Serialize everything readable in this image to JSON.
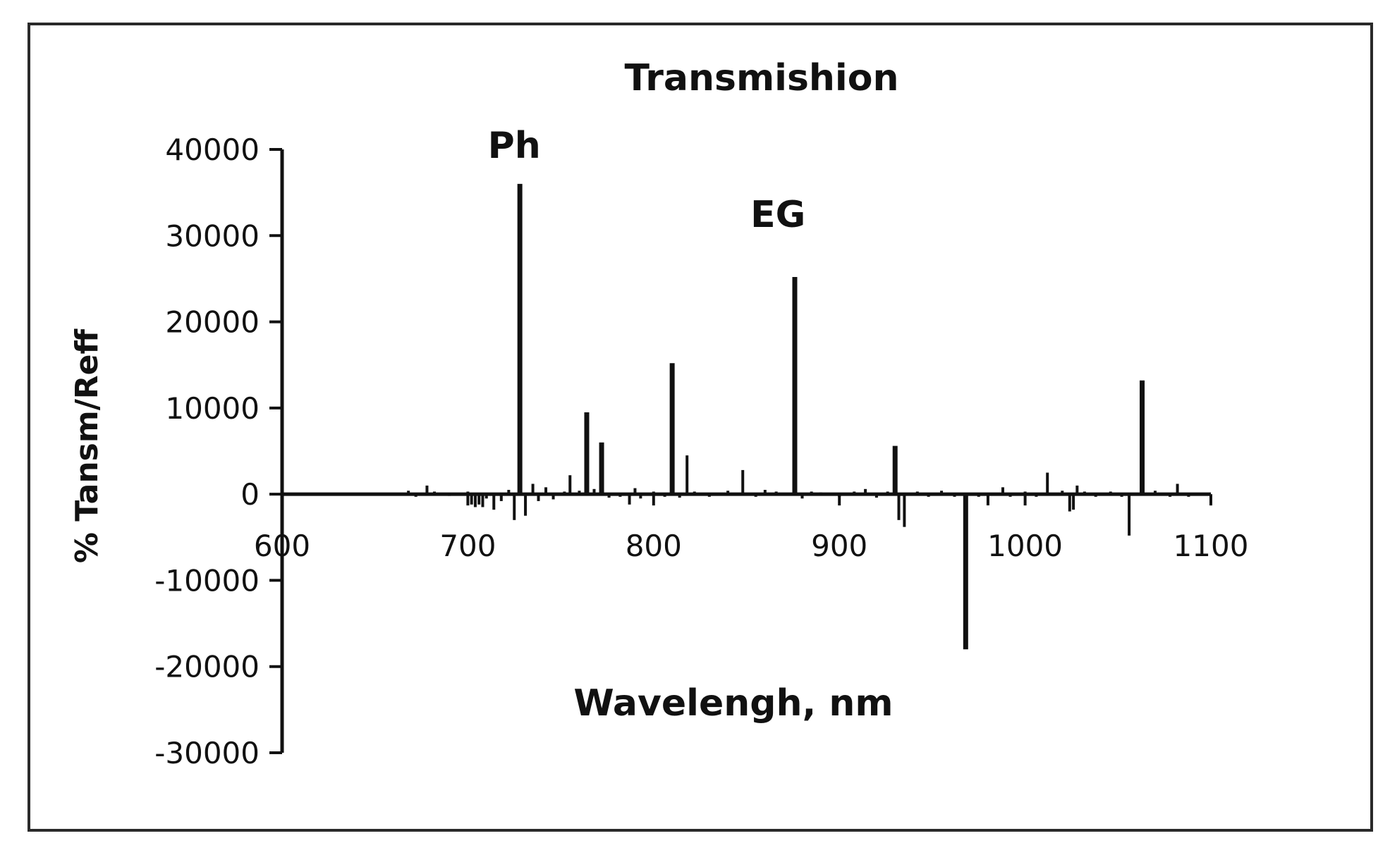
{
  "chart_data": {
    "type": "bar",
    "title": "Transmishion",
    "xlabel": "Wavelengh, nm",
    "ylabel": "% Tansm/Reff",
    "xlim": [
      600,
      1100
    ],
    "ylim": [
      -30000,
      40000
    ],
    "x_ticks": [
      600,
      700,
      800,
      900,
      1000,
      1100
    ],
    "y_ticks": [
      40000,
      30000,
      20000,
      10000,
      0,
      -10000,
      -20000,
      -30000
    ],
    "grid": false,
    "legend": "none",
    "annotations": [
      {
        "text": "Ph",
        "x": 728,
        "y": 40000
      },
      {
        "text": "EG",
        "x": 870,
        "y": 32000
      }
    ],
    "colors": {
      "line": "#111111",
      "frame": "#2a2a2a",
      "background": "#ffffff"
    },
    "series": [
      {
        "x": [
          668,
          672,
          678,
          682,
          690,
          700,
          702,
          704,
          706,
          708,
          710,
          714,
          718,
          722,
          725,
          728,
          731,
          735,
          738,
          742,
          746,
          752,
          755,
          760,
          764,
          768,
          772,
          776,
          782,
          787,
          790,
          793,
          800,
          806,
          810,
          814,
          818,
          822,
          830,
          840,
          848,
          855,
          860,
          866,
          876,
          880,
          885,
          890,
          900,
          908,
          914,
          920,
          926,
          930,
          932,
          935,
          942,
          948,
          955,
          962,
          968,
          975,
          980,
          988,
          992,
          1000,
          1006,
          1012,
          1020,
          1024,
          1026,
          1028,
          1032,
          1038,
          1046,
          1052,
          1056,
          1063,
          1070,
          1078,
          1082,
          1088
        ],
        "values": [
          400,
          -300,
          1000,
          300,
          -200,
          300,
          -1200,
          -1500,
          -1200,
          -1500,
          -500,
          -1800,
          -800,
          500,
          -3000,
          36000,
          -2500,
          1200,
          -800,
          800,
          -600,
          300,
          2200,
          400,
          9500,
          600,
          6000,
          -400,
          -300,
          -1200,
          700,
          -500,
          300,
          -300,
          15200,
          -400,
          4500,
          300,
          -300,
          400,
          2800,
          -300,
          500,
          300,
          25200,
          -500,
          300,
          200,
          -300,
          300,
          600,
          -400,
          300,
          5600,
          -3000,
          -3800,
          300,
          -300,
          400,
          -300,
          -18000,
          -300,
          -1300,
          800,
          -300,
          300,
          -300,
          2500,
          400,
          -2000,
          -1800,
          1000,
          300,
          -300,
          300,
          -300,
          -4800,
          13200,
          400,
          -300,
          1200,
          -300
        ]
      }
    ]
  }
}
